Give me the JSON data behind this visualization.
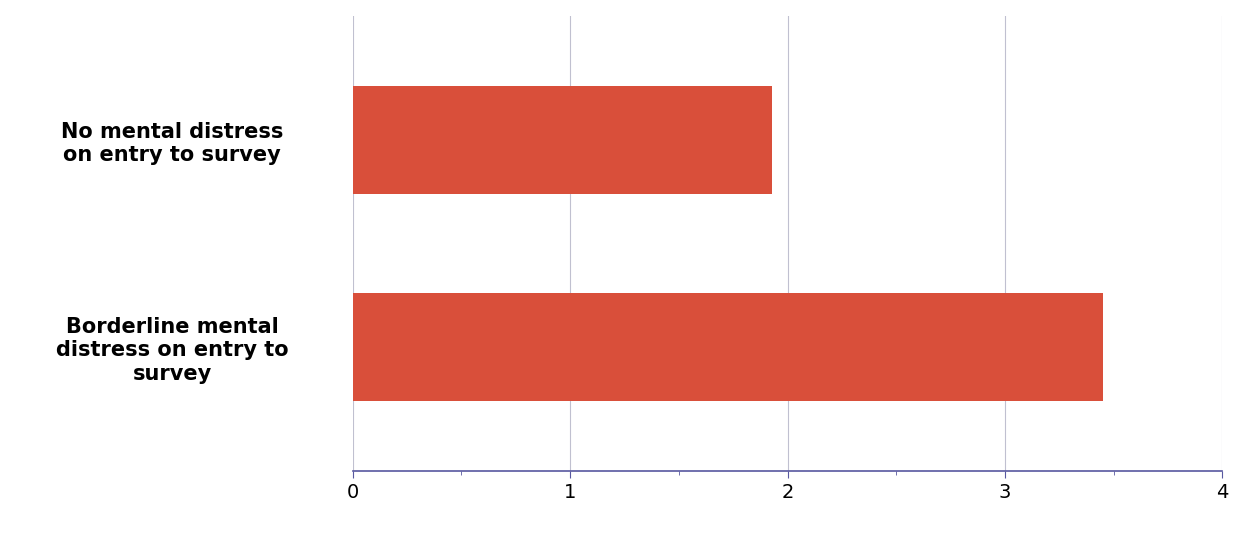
{
  "categories": [
    "No mental distress\non entry to survey",
    "Borderline mental\ndistress on entry to\nsurvey"
  ],
  "values": [
    1.93,
    3.45
  ],
  "bar_color": "#d94f3a",
  "xlim": [
    0,
    4
  ],
  "xticks": [
    0,
    1,
    2,
    3,
    4
  ],
  "bar_height": 0.52,
  "grid_color": "#c0c0d0",
  "axis_color": "#5858a0",
  "background_color": "#ffffff",
  "label_fontsize": 15,
  "tick_fontsize": 14,
  "label_fontweight": "bold"
}
